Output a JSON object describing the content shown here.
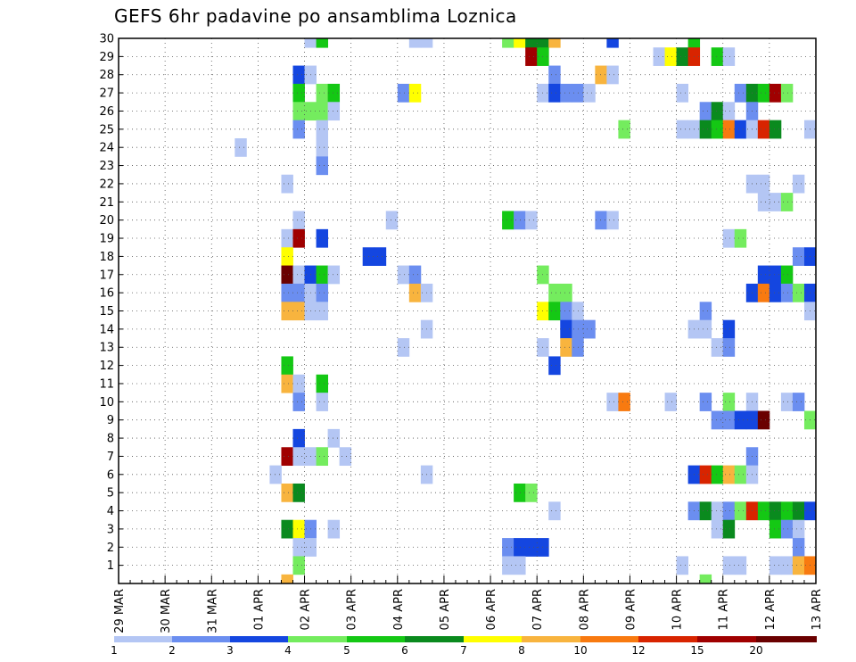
{
  "title": "GEFS 6hr padavine po ansamblima Loznica",
  "chart_data": {
    "type": "heatmap",
    "title": "GEFS 6hr padavine po ansamblima Loznica",
    "y_ticks": [
      "1",
      "2",
      "3",
      "4",
      "5",
      "6",
      "7",
      "8",
      "9",
      "10",
      "11",
      "12",
      "13",
      "14",
      "15",
      "16",
      "17",
      "18",
      "19",
      "20",
      "21",
      "22",
      "23",
      "24",
      "25",
      "26",
      "27",
      "28",
      "29",
      "30"
    ],
    "x_ticks": [
      "29 MAR",
      "30 MAR",
      "31 MAR",
      "01 APR",
      "02 APR",
      "03 APR",
      "04 APR",
      "05 APR",
      "06 APR",
      "07 APR",
      "08 APR",
      "09 APR",
      "10 APR",
      "11 APR",
      "12 APR",
      "13 APR"
    ],
    "x_range_steps": [
      0,
      60
    ],
    "y_range": [
      0,
      30
    ],
    "grid": true,
    "legend_position": "bottom",
    "legend": {
      "labels": [
        "1",
        "2",
        "3",
        "4",
        "5",
        "6",
        "7",
        "8",
        "10",
        "12",
        "15",
        "20"
      ],
      "colors": [
        "#b4c6f4",
        "#6b8ef0",
        "#1446e0",
        "#74ec5e",
        "#14c814",
        "#0a8a1e",
        "#ffff00",
        "#f8b43e",
        "#f87a10",
        "#d82400",
        "#a00000",
        "#6a0000"
      ]
    },
    "cells": [
      {
        "y": 30,
        "x": 17,
        "c": 1
      },
      {
        "y": 30,
        "x": 18,
        "c": 5
      },
      {
        "y": 30,
        "x": 26,
        "c": 1
      },
      {
        "y": 30,
        "x": 27,
        "c": 1
      },
      {
        "y": 30,
        "x": 34,
        "c": 4
      },
      {
        "y": 30,
        "x": 35,
        "c": 7
      },
      {
        "y": 30,
        "x": 36,
        "c": 6
      },
      {
        "y": 30,
        "x": 37,
        "c": 6
      },
      {
        "y": 30,
        "x": 38,
        "c": 8
      },
      {
        "y": 30,
        "x": 43,
        "c": 3
      },
      {
        "y": 30,
        "x": 50,
        "c": 5
      },
      {
        "y": 29,
        "x": 36,
        "c": 11
      },
      {
        "y": 29,
        "x": 37,
        "c": 5
      },
      {
        "y": 29,
        "x": 47,
        "c": 1
      },
      {
        "y": 29,
        "x": 48,
        "c": 7
      },
      {
        "y": 29,
        "x": 49,
        "c": 6
      },
      {
        "y": 29,
        "x": 50,
        "c": 10
      },
      {
        "y": 29,
        "x": 52,
        "c": 5
      },
      {
        "y": 29,
        "x": 53,
        "c": 1
      },
      {
        "y": 28,
        "x": 16,
        "c": 3
      },
      {
        "y": 28,
        "x": 17,
        "c": 1
      },
      {
        "y": 28,
        "x": 38,
        "c": 2
      },
      {
        "y": 28,
        "x": 42,
        "c": 8
      },
      {
        "y": 28,
        "x": 43,
        "c": 1
      },
      {
        "y": 27,
        "x": 16,
        "c": 5
      },
      {
        "y": 27,
        "x": 18,
        "c": 4
      },
      {
        "y": 27,
        "x": 19,
        "c": 5
      },
      {
        "y": 27,
        "x": 25,
        "c": 2
      },
      {
        "y": 27,
        "x": 26,
        "c": 7
      },
      {
        "y": 27,
        "x": 37,
        "c": 1
      },
      {
        "y": 27,
        "x": 38,
        "c": 3
      },
      {
        "y": 27,
        "x": 39,
        "c": 2
      },
      {
        "y": 27,
        "x": 40,
        "c": 2
      },
      {
        "y": 27,
        "x": 41,
        "c": 1
      },
      {
        "y": 27,
        "x": 49,
        "c": 1
      },
      {
        "y": 27,
        "x": 54,
        "c": 2
      },
      {
        "y": 27,
        "x": 55,
        "c": 6
      },
      {
        "y": 27,
        "x": 56,
        "c": 5
      },
      {
        "y": 27,
        "x": 57,
        "c": 11
      },
      {
        "y": 27,
        "x": 58,
        "c": 4
      },
      {
        "y": 26,
        "x": 16,
        "c": 4
      },
      {
        "y": 26,
        "x": 17,
        "c": 4
      },
      {
        "y": 26,
        "x": 18,
        "c": 4
      },
      {
        "y": 26,
        "x": 19,
        "c": 1
      },
      {
        "y": 26,
        "x": 51,
        "c": 2
      },
      {
        "y": 26,
        "x": 52,
        "c": 6
      },
      {
        "y": 26,
        "x": 53,
        "c": 1
      },
      {
        "y": 26,
        "x": 55,
        "c": 2
      },
      {
        "y": 25,
        "x": 16,
        "c": 2
      },
      {
        "y": 25,
        "x": 18,
        "c": 1
      },
      {
        "y": 25,
        "x": 44,
        "c": 4
      },
      {
        "y": 25,
        "x": 49,
        "c": 1
      },
      {
        "y": 25,
        "x": 50,
        "c": 1
      },
      {
        "y": 25,
        "x": 51,
        "c": 6
      },
      {
        "y": 25,
        "x": 52,
        "c": 5
      },
      {
        "y": 25,
        "x": 53,
        "c": 9
      },
      {
        "y": 25,
        "x": 54,
        "c": 3
      },
      {
        "y": 25,
        "x": 55,
        "c": 1
      },
      {
        "y": 25,
        "x": 56,
        "c": 10
      },
      {
        "y": 25,
        "x": 57,
        "c": 6
      },
      {
        "y": 25,
        "x": 60,
        "c": 1
      },
      {
        "y": 24,
        "x": 11,
        "c": 1
      },
      {
        "y": 24,
        "x": 18,
        "c": 1
      },
      {
        "y": 23,
        "x": 18,
        "c": 2
      },
      {
        "y": 22,
        "x": 15,
        "c": 1
      },
      {
        "y": 22,
        "x": 55,
        "c": 1
      },
      {
        "y": 22,
        "x": 56,
        "c": 1
      },
      {
        "y": 22,
        "x": 59,
        "c": 1
      },
      {
        "y": 21,
        "x": 56,
        "c": 1
      },
      {
        "y": 21,
        "x": 57,
        "c": 1
      },
      {
        "y": 21,
        "x": 58,
        "c": 4
      },
      {
        "y": 20,
        "x": 16,
        "c": 1
      },
      {
        "y": 20,
        "x": 24,
        "c": 1
      },
      {
        "y": 20,
        "x": 34,
        "c": 5
      },
      {
        "y": 20,
        "x": 35,
        "c": 2
      },
      {
        "y": 20,
        "x": 36,
        "c": 1
      },
      {
        "y": 20,
        "x": 42,
        "c": 2
      },
      {
        "y": 20,
        "x": 43,
        "c": 1
      },
      {
        "y": 19,
        "x": 15,
        "c": 1
      },
      {
        "y": 19,
        "x": 16,
        "c": 11
      },
      {
        "y": 19,
        "x": 18,
        "c": 3
      },
      {
        "y": 19,
        "x": 53,
        "c": 1
      },
      {
        "y": 19,
        "x": 54,
        "c": 4
      },
      {
        "y": 18,
        "x": 15,
        "c": 7
      },
      {
        "y": 18,
        "x": 22,
        "c": 3
      },
      {
        "y": 18,
        "x": 23,
        "c": 3
      },
      {
        "y": 18,
        "x": 59,
        "c": 2
      },
      {
        "y": 18,
        "x": 60,
        "c": 3
      },
      {
        "y": 17,
        "x": 15,
        "c": 12
      },
      {
        "y": 17,
        "x": 16,
        "c": 1
      },
      {
        "y": 17,
        "x": 17,
        "c": 3
      },
      {
        "y": 17,
        "x": 18,
        "c": 5
      },
      {
        "y": 17,
        "x": 19,
        "c": 1
      },
      {
        "y": 17,
        "x": 25,
        "c": 1
      },
      {
        "y": 17,
        "x": 26,
        "c": 2
      },
      {
        "y": 17,
        "x": 37,
        "c": 4
      },
      {
        "y": 17,
        "x": 56,
        "c": 3
      },
      {
        "y": 17,
        "x": 57,
        "c": 3
      },
      {
        "y": 17,
        "x": 58,
        "c": 5
      },
      {
        "y": 16,
        "x": 15,
        "c": 2
      },
      {
        "y": 16,
        "x": 16,
        "c": 2
      },
      {
        "y": 16,
        "x": 17,
        "c": 1
      },
      {
        "y": 16,
        "x": 18,
        "c": 2
      },
      {
        "y": 16,
        "x": 26,
        "c": 8
      },
      {
        "y": 16,
        "x": 27,
        "c": 1
      },
      {
        "y": 16,
        "x": 38,
        "c": 4
      },
      {
        "y": 16,
        "x": 39,
        "c": 4
      },
      {
        "y": 16,
        "x": 55,
        "c": 3
      },
      {
        "y": 16,
        "x": 56,
        "c": 9
      },
      {
        "y": 16,
        "x": 57,
        "c": 3
      },
      {
        "y": 16,
        "x": 58,
        "c": 2
      },
      {
        "y": 16,
        "x": 59,
        "c": 4
      },
      {
        "y": 16,
        "x": 60,
        "c": 3
      },
      {
        "y": 15,
        "x": 15,
        "c": 8
      },
      {
        "y": 15,
        "x": 16,
        "c": 8
      },
      {
        "y": 15,
        "x": 17,
        "c": 1
      },
      {
        "y": 15,
        "x": 18,
        "c": 1
      },
      {
        "y": 15,
        "x": 37,
        "c": 7
      },
      {
        "y": 15,
        "x": 38,
        "c": 5
      },
      {
        "y": 15,
        "x": 39,
        "c": 2
      },
      {
        "y": 15,
        "x": 40,
        "c": 1
      },
      {
        "y": 15,
        "x": 51,
        "c": 2
      },
      {
        "y": 15,
        "x": 60,
        "c": 1
      },
      {
        "y": 14,
        "x": 27,
        "c": 1
      },
      {
        "y": 14,
        "x": 39,
        "c": 3
      },
      {
        "y": 14,
        "x": 40,
        "c": 2
      },
      {
        "y": 14,
        "x": 41,
        "c": 2
      },
      {
        "y": 14,
        "x": 50,
        "c": 1
      },
      {
        "y": 14,
        "x": 51,
        "c": 1
      },
      {
        "y": 14,
        "x": 53,
        "c": 3
      },
      {
        "y": 13,
        "x": 25,
        "c": 1
      },
      {
        "y": 13,
        "x": 37,
        "c": 1
      },
      {
        "y": 13,
        "x": 39,
        "c": 8
      },
      {
        "y": 13,
        "x": 40,
        "c": 2
      },
      {
        "y": 13,
        "x": 52,
        "c": 1
      },
      {
        "y": 13,
        "x": 53,
        "c": 2
      },
      {
        "y": 12,
        "x": 15,
        "c": 5
      },
      {
        "y": 12,
        "x": 38,
        "c": 3
      },
      {
        "y": 11,
        "x": 15,
        "c": 8
      },
      {
        "y": 11,
        "x": 16,
        "c": 1
      },
      {
        "y": 11,
        "x": 18,
        "c": 5
      },
      {
        "y": 10,
        "x": 16,
        "c": 2
      },
      {
        "y": 10,
        "x": 18,
        "c": 1
      },
      {
        "y": 10,
        "x": 43,
        "c": 1
      },
      {
        "y": 10,
        "x": 44,
        "c": 9
      },
      {
        "y": 10,
        "x": 48,
        "c": 1
      },
      {
        "y": 10,
        "x": 51,
        "c": 2
      },
      {
        "y": 10,
        "x": 53,
        "c": 4
      },
      {
        "y": 10,
        "x": 55,
        "c": 1
      },
      {
        "y": 10,
        "x": 58,
        "c": 1
      },
      {
        "y": 10,
        "x": 59,
        "c": 2
      },
      {
        "y": 9,
        "x": 52,
        "c": 2
      },
      {
        "y": 9,
        "x": 53,
        "c": 2
      },
      {
        "y": 9,
        "x": 54,
        "c": 3
      },
      {
        "y": 9,
        "x": 55,
        "c": 3
      },
      {
        "y": 9,
        "x": 56,
        "c": 12
      },
      {
        "y": 9,
        "x": 60,
        "c": 4
      },
      {
        "y": 8,
        "x": 16,
        "c": 3
      },
      {
        "y": 8,
        "x": 19,
        "c": 1
      },
      {
        "y": 7,
        "x": 15,
        "c": 11
      },
      {
        "y": 7,
        "x": 16,
        "c": 1
      },
      {
        "y": 7,
        "x": 17,
        "c": 1
      },
      {
        "y": 7,
        "x": 18,
        "c": 4
      },
      {
        "y": 7,
        "x": 20,
        "c": 1
      },
      {
        "y": 7,
        "x": 55,
        "c": 2
      },
      {
        "y": 6,
        "x": 14,
        "c": 1
      },
      {
        "y": 6,
        "x": 27,
        "c": 1
      },
      {
        "y": 6,
        "x": 50,
        "c": 3
      },
      {
        "y": 6,
        "x": 51,
        "c": 10
      },
      {
        "y": 6,
        "x": 52,
        "c": 5
      },
      {
        "y": 6,
        "x": 53,
        "c": 8
      },
      {
        "y": 6,
        "x": 54,
        "c": 4
      },
      {
        "y": 6,
        "x": 55,
        "c": 1
      },
      {
        "y": 5,
        "x": 15,
        "c": 8
      },
      {
        "y": 5,
        "x": 16,
        "c": 6
      },
      {
        "y": 5,
        "x": 35,
        "c": 5
      },
      {
        "y": 5,
        "x": 36,
        "c": 4
      },
      {
        "y": 4,
        "x": 38,
        "c": 1
      },
      {
        "y": 4,
        "x": 50,
        "c": 2
      },
      {
        "y": 4,
        "x": 51,
        "c": 6
      },
      {
        "y": 4,
        "x": 52,
        "c": 1
      },
      {
        "y": 4,
        "x": 53,
        "c": 2
      },
      {
        "y": 4,
        "x": 54,
        "c": 4
      },
      {
        "y": 4,
        "x": 55,
        "c": 10
      },
      {
        "y": 4,
        "x": 56,
        "c": 5
      },
      {
        "y": 4,
        "x": 57,
        "c": 6
      },
      {
        "y": 4,
        "x": 58,
        "c": 5
      },
      {
        "y": 4,
        "x": 59,
        "c": 6
      },
      {
        "y": 4,
        "x": 60,
        "c": 3
      },
      {
        "y": 3,
        "x": 15,
        "c": 6
      },
      {
        "y": 3,
        "x": 16,
        "c": 7
      },
      {
        "y": 3,
        "x": 17,
        "c": 2
      },
      {
        "y": 3,
        "x": 19,
        "c": 1
      },
      {
        "y": 3,
        "x": 52,
        "c": 1
      },
      {
        "y": 3,
        "x": 53,
        "c": 6
      },
      {
        "y": 3,
        "x": 57,
        "c": 5
      },
      {
        "y": 3,
        "x": 58,
        "c": 2
      },
      {
        "y": 3,
        "x": 59,
        "c": 1
      },
      {
        "y": 2,
        "x": 16,
        "c": 1
      },
      {
        "y": 2,
        "x": 17,
        "c": 1
      },
      {
        "y": 2,
        "x": 34,
        "c": 2
      },
      {
        "y": 2,
        "x": 35,
        "c": 3
      },
      {
        "y": 2,
        "x": 36,
        "c": 3
      },
      {
        "y": 2,
        "x": 37,
        "c": 3
      },
      {
        "y": 2,
        "x": 59,
        "c": 2
      },
      {
        "y": 1,
        "x": 16,
        "c": 4
      },
      {
        "y": 1,
        "x": 34,
        "c": 1
      },
      {
        "y": 1,
        "x": 35,
        "c": 1
      },
      {
        "y": 1,
        "x": 49,
        "c": 1
      },
      {
        "y": 1,
        "x": 53,
        "c": 1
      },
      {
        "y": 1,
        "x": 54,
        "c": 1
      },
      {
        "y": 1,
        "x": 57,
        "c": 1
      },
      {
        "y": 1,
        "x": 58,
        "c": 1
      },
      {
        "y": 1,
        "x": 59,
        "c": 8
      },
      {
        "y": 1,
        "x": 60,
        "c": 9
      },
      {
        "y": 0,
        "x": 15,
        "c": 8
      },
      {
        "y": 0,
        "x": 51,
        "c": 4
      }
    ]
  }
}
